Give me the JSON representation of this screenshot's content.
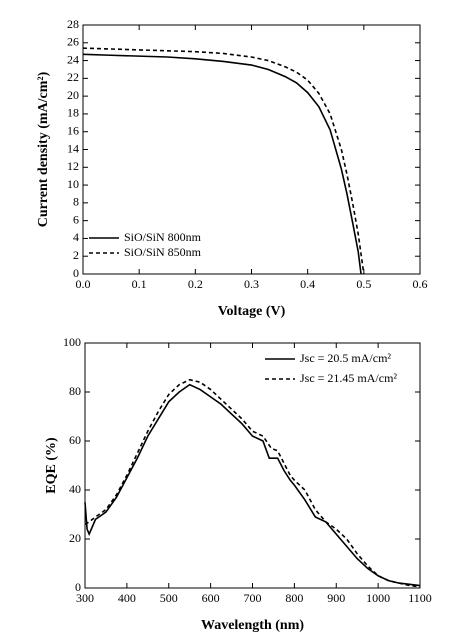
{
  "chart_data": [
    {
      "type": "line",
      "xlabel": "Voltage (V)",
      "ylabel": "Current density (mA/cm²)",
      "xlim": [
        0,
        0.6
      ],
      "ylim": [
        0,
        28
      ],
      "xticks": [
        {
          "value": 0,
          "label": "0.0"
        },
        0.1,
        0.2,
        0.3,
        0.4,
        0.5,
        0.6
      ],
      "yticks": [
        0,
        2,
        4,
        6,
        8,
        10,
        12,
        14,
        16,
        18,
        20,
        22,
        24,
        26,
        28
      ],
      "legend": "lower left",
      "series": [
        {
          "name": "SiO/SiN 800nm",
          "color": "#000000",
          "dash": "solid",
          "x": [
            0,
            0.05,
            0.1,
            0.15,
            0.2,
            0.25,
            0.3,
            0.33,
            0.36,
            0.38,
            0.4,
            0.42,
            0.44,
            0.46,
            0.47,
            0.48,
            0.49,
            0.495
          ],
          "values": [
            24.7,
            24.6,
            24.5,
            24.4,
            24.2,
            23.9,
            23.5,
            23.0,
            22.2,
            21.5,
            20.4,
            18.8,
            16.2,
            11.8,
            9.0,
            5.8,
            2.5,
            0
          ]
        },
        {
          "name": "SiO/SiN 850nm",
          "color": "#000000",
          "dash": "dashed",
          "x": [
            0,
            0.05,
            0.1,
            0.15,
            0.2,
            0.25,
            0.3,
            0.33,
            0.36,
            0.38,
            0.4,
            0.42,
            0.44,
            0.46,
            0.47,
            0.48,
            0.49,
            0.5
          ],
          "values": [
            25.4,
            25.3,
            25.2,
            25.1,
            25.0,
            24.8,
            24.4,
            24.0,
            23.3,
            22.7,
            21.8,
            20.3,
            18.0,
            14.0,
            11.2,
            8.0,
            4.5,
            0
          ]
        }
      ]
    },
    {
      "type": "line",
      "xlabel": "Wavelength (nm)",
      "ylabel": "EQE (%)",
      "xlim": [
        300,
        1100
      ],
      "ylim": [
        0,
        100
      ],
      "xticks": [
        300,
        400,
        500,
        600,
        700,
        800,
        900,
        1000,
        1100
      ],
      "yticks": [
        0,
        20,
        40,
        60,
        80,
        100
      ],
      "legend": "upper right",
      "series": [
        {
          "name": "Jsc = 20.5 mA/cm²",
          "color": "#000000",
          "dash": "solid",
          "x": [
            300,
            305,
            310,
            325,
            350,
            375,
            400,
            425,
            450,
            475,
            500,
            525,
            550,
            575,
            600,
            625,
            650,
            675,
            700,
            725,
            740,
            760,
            775,
            790,
            800,
            825,
            850,
            875,
            900,
            925,
            950,
            975,
            1000,
            1025,
            1050,
            1075,
            1100
          ],
          "values": [
            35,
            24,
            22,
            28,
            31,
            37,
            45,
            53,
            62,
            69,
            76,
            80,
            83,
            81,
            78,
            75,
            71,
            67,
            62,
            60,
            53,
            53,
            48,
            44,
            42,
            36,
            29,
            27,
            22,
            17,
            12,
            8,
            5,
            3,
            2,
            1.5,
            1
          ]
        },
        {
          "name": "Jsc = 21.45 mA/cm²",
          "color": "#000000",
          "dash": "dashed",
          "x": [
            300,
            310,
            325,
            350,
            375,
            400,
            425,
            450,
            475,
            500,
            525,
            550,
            575,
            600,
            625,
            650,
            675,
            700,
            725,
            745,
            760,
            775,
            790,
            800,
            825,
            850,
            875,
            900,
            925,
            950,
            975,
            1000,
            1025,
            1050,
            1075,
            1100
          ],
          "values": [
            26,
            27,
            29,
            32,
            38,
            46,
            55,
            64,
            72,
            79,
            83,
            85,
            84,
            81,
            77,
            73,
            69,
            64,
            62,
            57,
            56,
            51,
            46,
            44,
            40,
            32,
            27,
            24,
            20,
            14,
            9,
            5,
            3,
            2,
            1,
            0.5
          ]
        }
      ]
    }
  ]
}
